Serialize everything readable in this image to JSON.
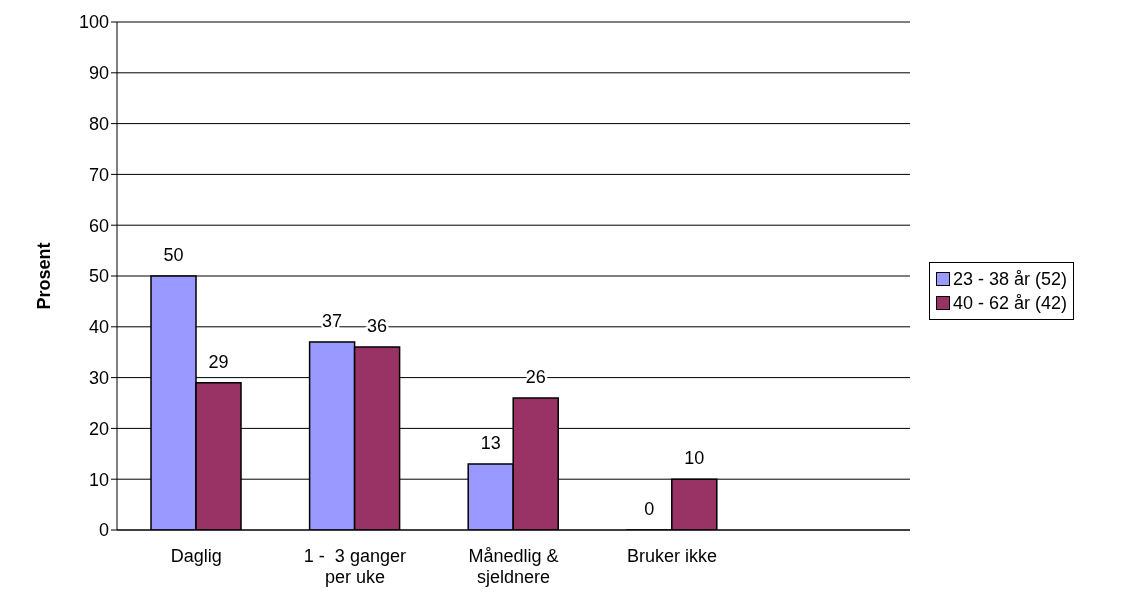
{
  "chart_data": {
    "type": "bar",
    "ylabel": "Prosent",
    "categories": [
      "Daglig",
      "1 -  3 ganger per uke",
      "Månedlig & sjeldnere",
      "Bruker ikke",
      null
    ],
    "series": [
      {
        "name": "23 - 38 år (52)",
        "color": "#9999ff",
        "values": [
          50,
          37,
          13,
          0,
          null
        ]
      },
      {
        "name": "40 - 62 år (42)",
        "color": "#993366",
        "values": [
          29,
          36,
          26,
          10,
          null
        ]
      }
    ],
    "ylim": [
      0,
      100
    ],
    "yticks": [
      0,
      10,
      20,
      30,
      40,
      50,
      60,
      70,
      80,
      90,
      100
    ],
    "grid": "y",
    "legend": "right",
    "data_labels": true
  }
}
